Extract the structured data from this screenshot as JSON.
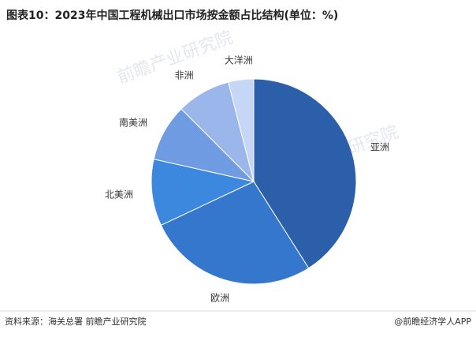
{
  "chart_data": {
    "type": "pie",
    "title": "图表10：2023年中国工程机械出口市场按金额占比结构(单位：%)",
    "categories": [
      "亚洲",
      "欧洲",
      "北美洲",
      "南美洲",
      "非洲",
      "大洋洲"
    ],
    "values": [
      41,
      27,
      10.5,
      9,
      8.5,
      4
    ],
    "colors": [
      "#2b5fa9",
      "#3477cc",
      "#3c88df",
      "#6e9be2",
      "#9bb6ea",
      "#c6d6f6"
    ],
    "source": "资料来源：海关总署 前瞻产业研究院",
    "brand": "@前瞻经济学人APP",
    "watermark": "前瞻产业研究院"
  }
}
